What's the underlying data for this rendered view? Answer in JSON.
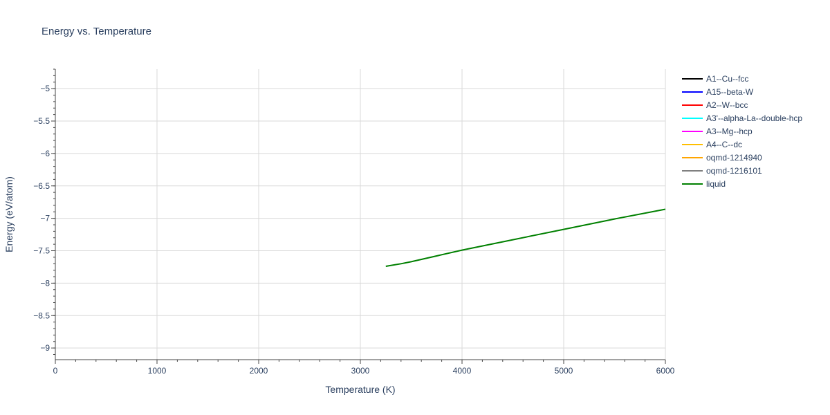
{
  "chart_data": {
    "type": "line",
    "title": "Energy vs. Temperature",
    "xlabel": "Temperature (K)",
    "ylabel": "Energy (eV/atom)",
    "xlim": [
      0,
      6000
    ],
    "ylim": [
      -9.18,
      -4.7
    ],
    "xticks": [
      0,
      1000,
      2000,
      3000,
      4000,
      5000,
      6000
    ],
    "xtick_labels": [
      "0",
      "1000",
      "2000",
      "3000",
      "4000",
      "5000",
      "6000"
    ],
    "yticks": [
      -9,
      -8.5,
      -8,
      -7.5,
      -7,
      -6.5,
      -6,
      -5.5,
      -5
    ],
    "ytick_labels": [
      "−9",
      "−8.5",
      "−8",
      "−7.5",
      "−7",
      "−6.5",
      "−6",
      "−5.5",
      "−5"
    ],
    "grid": true,
    "legend_position": "right",
    "series": [
      {
        "name": "A1--Cu--fcc",
        "color": "#000000",
        "x": [],
        "y": []
      },
      {
        "name": "A15--beta-W",
        "color": "#0000ff",
        "x": [],
        "y": []
      },
      {
        "name": "A2--W--bcc",
        "color": "#ff0000",
        "x": [],
        "y": []
      },
      {
        "name": "A3'--alpha-La--double-hcp",
        "color": "#00ffff",
        "x": [],
        "y": []
      },
      {
        "name": "A3--Mg--hcp",
        "color": "#ff00ff",
        "x": [],
        "y": []
      },
      {
        "name": "A4--C--dc",
        "color": "#ffbf00",
        "x": [],
        "y": []
      },
      {
        "name": "oqmd-1214940",
        "color": "#ffa500",
        "x": [],
        "y": []
      },
      {
        "name": "oqmd-1216101",
        "color": "#808080",
        "x": [],
        "y": []
      },
      {
        "name": "liquid",
        "color": "#008000",
        "x": [
          3250,
          3400,
          3500,
          4000,
          4500,
          5000,
          5500,
          6000
        ],
        "y": [
          -7.74,
          -7.7,
          -7.67,
          -7.49,
          -7.33,
          -7.17,
          -7.01,
          -6.86
        ]
      }
    ]
  }
}
